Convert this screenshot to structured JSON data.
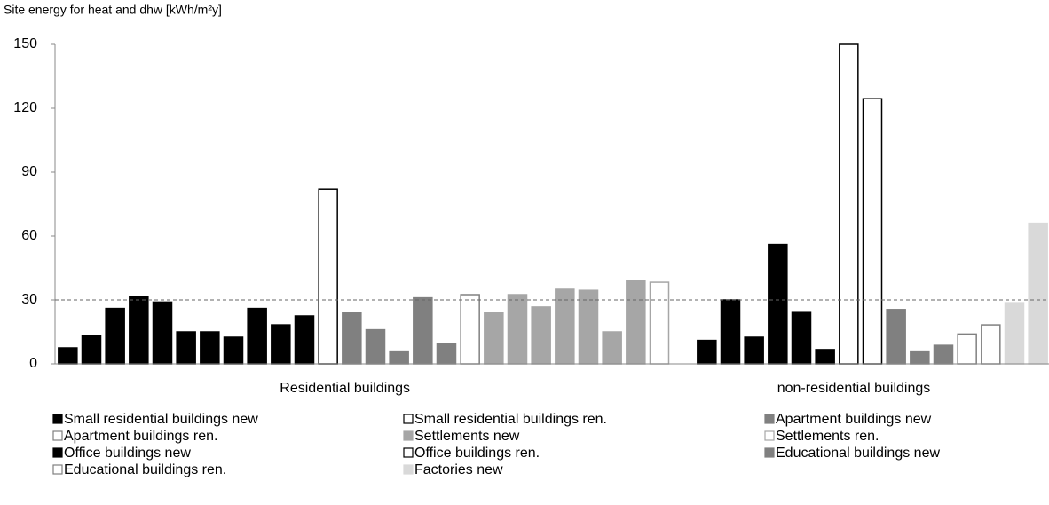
{
  "chart_data": {
    "type": "bar",
    "ylabel": "Site energy for heat and dhw [kWh/m²y]",
    "ylim": [
      0,
      150
    ],
    "yticks": [
      0,
      30,
      60,
      90,
      120,
      150
    ],
    "reference_line": 30,
    "groups": [
      {
        "name": "Residential buildings",
        "span": [
          0,
          25
        ]
      },
      {
        "name": "non-residential buildings",
        "span": [
          27,
          41
        ]
      }
    ],
    "series": [
      {
        "name": "Small residential buildings new",
        "color": "#000000",
        "edgecolor": "#000000",
        "values": [
          7.5,
          13.3,
          26,
          31.7,
          29,
          15,
          15,
          12.5,
          26,
          18.3,
          22.5,
          null,
          null,
          null,
          null,
          null,
          null,
          null,
          null,
          null,
          null,
          null,
          null,
          null,
          null,
          null,
          null,
          null,
          null,
          null,
          null,
          null,
          null,
          null,
          null,
          null,
          null,
          null,
          null,
          null,
          null,
          null
        ]
      },
      {
        "name": "Small residential buildings ren.",
        "color": "#ffffff",
        "edgecolor": "#000000",
        "values": [
          null,
          null,
          null,
          null,
          null,
          null,
          null,
          null,
          null,
          null,
          null,
          82,
          null,
          null,
          null,
          null,
          null,
          null,
          null,
          null,
          null,
          null,
          null,
          null,
          null,
          null,
          null,
          null,
          null,
          null,
          null,
          null,
          null,
          null,
          null,
          null,
          null,
          null,
          null,
          null,
          null,
          null
        ]
      },
      {
        "name": "Apartment buildings new",
        "color": "#808080",
        "edgecolor": "#808080",
        "values": [
          null,
          null,
          null,
          null,
          null,
          null,
          null,
          null,
          null,
          null,
          null,
          null,
          24,
          16,
          6,
          31,
          9.5,
          null,
          null,
          null,
          null,
          null,
          null,
          null,
          null,
          null,
          null,
          null,
          null,
          null,
          null,
          null,
          null,
          null,
          null,
          null,
          null,
          null,
          null,
          null,
          null,
          null
        ]
      },
      {
        "name": "Apartment buildings ren.",
        "color": "#ffffff",
        "edgecolor": "#808080",
        "values": [
          null,
          null,
          null,
          null,
          null,
          null,
          null,
          null,
          null,
          null,
          null,
          null,
          null,
          null,
          null,
          null,
          null,
          32.5,
          null,
          null,
          null,
          null,
          null,
          null,
          null,
          null,
          null,
          null,
          null,
          null,
          null,
          null,
          null,
          null,
          null,
          null,
          null,
          null,
          null,
          null,
          null,
          null
        ]
      },
      {
        "name": "Settlements new",
        "color": "#a6a6a6",
        "edgecolor": "#a6a6a6",
        "values": [
          null,
          null,
          null,
          null,
          null,
          null,
          null,
          null,
          null,
          null,
          null,
          null,
          null,
          null,
          null,
          null,
          null,
          null,
          24,
          32.5,
          26.7,
          35,
          34.5,
          15,
          39,
          null,
          null,
          null,
          null,
          null,
          null,
          null,
          null,
          null,
          null,
          null,
          null,
          null,
          null,
          null,
          null,
          null
        ]
      },
      {
        "name": "Settlements ren.",
        "color": "#ffffff",
        "edgecolor": "#a6a6a6",
        "values": [
          null,
          null,
          null,
          null,
          null,
          null,
          null,
          null,
          null,
          null,
          null,
          null,
          null,
          null,
          null,
          null,
          null,
          null,
          null,
          null,
          null,
          null,
          null,
          null,
          null,
          38.3,
          null,
          null,
          null,
          null,
          null,
          null,
          null,
          null,
          null,
          null,
          null,
          null,
          null,
          null,
          null,
          null
        ]
      },
      {
        "name": "Office buildings new",
        "color": "#000000",
        "edgecolor": "#000000",
        "values": [
          null,
          null,
          null,
          null,
          null,
          null,
          null,
          null,
          null,
          null,
          null,
          null,
          null,
          null,
          null,
          null,
          null,
          null,
          null,
          null,
          null,
          null,
          null,
          null,
          null,
          null,
          null,
          11,
          30,
          12.5,
          56,
          24.5,
          6.7,
          null,
          null,
          null,
          null,
          null,
          null,
          null,
          null,
          null
        ]
      },
      {
        "name": "Office buildings ren.",
        "color": "#ffffff",
        "edgecolor": "#000000",
        "values": [
          null,
          null,
          null,
          null,
          null,
          null,
          null,
          null,
          null,
          null,
          null,
          null,
          null,
          null,
          null,
          null,
          null,
          null,
          null,
          null,
          null,
          null,
          null,
          null,
          null,
          null,
          null,
          null,
          null,
          null,
          null,
          null,
          null,
          150,
          124.5,
          null,
          null,
          null,
          null,
          null,
          null,
          null
        ]
      },
      {
        "name": "Educational buildings new",
        "color": "#808080",
        "edgecolor": "#808080",
        "values": [
          null,
          null,
          null,
          null,
          null,
          null,
          null,
          null,
          null,
          null,
          null,
          null,
          null,
          null,
          null,
          null,
          null,
          null,
          null,
          null,
          null,
          null,
          null,
          null,
          null,
          null,
          null,
          null,
          null,
          null,
          null,
          null,
          null,
          null,
          null,
          25.5,
          6,
          8.7,
          null,
          null,
          null,
          null
        ]
      },
      {
        "name": "Educational buildings ren.",
        "color": "#ffffff",
        "edgecolor": "#808080",
        "values": [
          null,
          null,
          null,
          null,
          null,
          null,
          null,
          null,
          null,
          null,
          null,
          null,
          null,
          null,
          null,
          null,
          null,
          null,
          null,
          null,
          null,
          null,
          null,
          null,
          null,
          null,
          null,
          null,
          null,
          null,
          null,
          null,
          null,
          null,
          null,
          null,
          null,
          null,
          14,
          18.3,
          null,
          null
        ]
      },
      {
        "name": "Factories new",
        "color": "#d9d9d9",
        "edgecolor": "#d9d9d9",
        "values": [
          null,
          null,
          null,
          null,
          null,
          null,
          null,
          null,
          null,
          null,
          null,
          null,
          null,
          null,
          null,
          null,
          null,
          null,
          null,
          null,
          null,
          null,
          null,
          null,
          null,
          null,
          null,
          null,
          null,
          null,
          null,
          null,
          null,
          null,
          null,
          null,
          null,
          null,
          null,
          null,
          28.7,
          66
        ]
      }
    ]
  }
}
